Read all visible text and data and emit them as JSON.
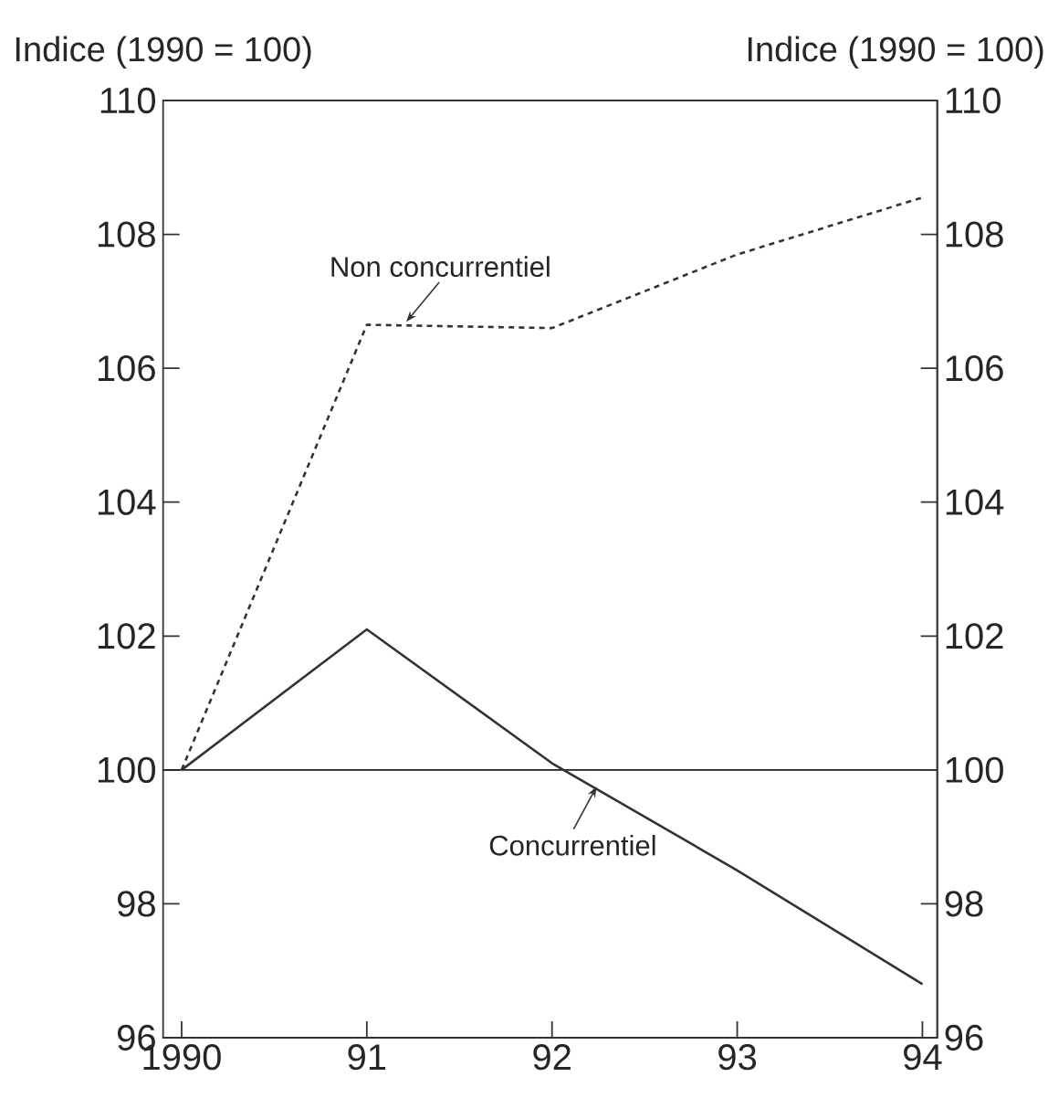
{
  "chart_data": {
    "type": "line",
    "ylabel": "Indice (1990 = 100)",
    "y2label": "Indice (1990 = 100)",
    "x": [
      1990,
      1991,
      1992,
      1993,
      1994
    ],
    "series": [
      {
        "color": "#333333",
        "line_style": "dashed",
        "values": [
          100,
          106.65,
          106.6,
          107.7,
          108.55
        ]
      },
      {
        "color": "#333333",
        "line_style": "solid",
        "values": [
          100,
          102.1,
          100.1,
          98.5,
          96.8
        ]
      }
    ],
    "xlim": [
      1989.9,
      1994.08
    ],
    "ylim": [
      96,
      110
    ],
    "y2lim": [
      96,
      110
    ],
    "xticks": [
      1990,
      {
        "value": 1991,
        "label": "91"
      },
      {
        "value": 1992,
        "label": "92"
      },
      {
        "value": 1993,
        "label": "93"
      },
      {
        "value": 1994,
        "label": "94"
      }
    ],
    "yticks": [
      96,
      98,
      100,
      102,
      104,
      106,
      108,
      110
    ],
    "y2ticks": [
      96,
      98,
      100,
      102,
      104,
      106,
      108,
      110
    ],
    "ref_lines": [
      {
        "axis": "y",
        "value": 100,
        "color": "#222222",
        "line_style": "solid"
      }
    ],
    "annotations": [
      {
        "text": "Non concurrentiel",
        "x": 1991.2,
        "y": 106.65
      },
      {
        "text": "Concurrentiel",
        "x": 1992.25,
        "y": 99.8
      }
    ],
    "grid": false,
    "marker": "none"
  }
}
